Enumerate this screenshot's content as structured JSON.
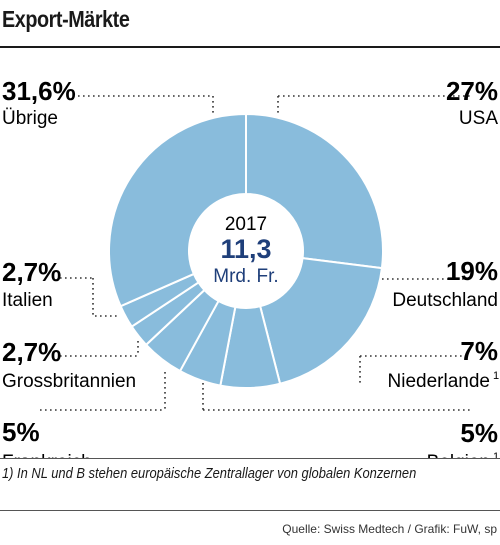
{
  "page": {
    "title": "Export-Märkte",
    "footnote": "1) In NL und B stehen europäische Zentrallager von globalen Konzernen",
    "source": "Quelle: Swiss Medtech / Grafik: FuW, sp"
  },
  "colors": {
    "slice": "#89bcdc",
    "separator": "#ffffff",
    "center_text": "#1f3f7a",
    "leader": "#333333"
  },
  "chart_data": {
    "type": "pie",
    "variant": "donut",
    "center": {
      "year": "2017",
      "value": "11,3",
      "unit": "Mrd. Fr."
    },
    "slices": [
      {
        "name": "USA",
        "value": 27,
        "label": "27%",
        "side": "right"
      },
      {
        "name": "Deutschland",
        "value": 19,
        "label": "19%",
        "side": "right"
      },
      {
        "name": "Niederlande",
        "value": 7,
        "label": "7%",
        "side": "right",
        "footnote": "1"
      },
      {
        "name": "Belgien",
        "value": 5,
        "label": "5%",
        "side": "right",
        "footnote": "1"
      },
      {
        "name": "Frankreich",
        "value": 5,
        "label": "5%",
        "side": "left"
      },
      {
        "name": "Grossbritannien",
        "value": 2.7,
        "label": "2,7%",
        "side": "left"
      },
      {
        "name": "Italien",
        "value": 2.7,
        "label": "2,7%",
        "side": "left"
      },
      {
        "name": "Übrige",
        "value": 31.6,
        "label": "31,6%",
        "side": "left"
      }
    ]
  }
}
